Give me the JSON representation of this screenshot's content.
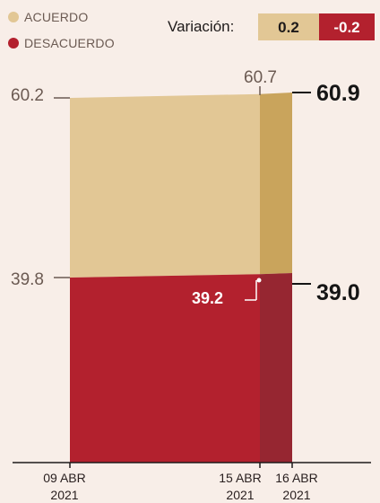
{
  "legend": {
    "agree_label": "ACUERDO",
    "disagree_label": "DESACUERDO"
  },
  "variation": {
    "label": "Variación:",
    "positive": "0.2",
    "negative": "-0.2"
  },
  "chart_data": {
    "type": "area",
    "x": [
      "09 ABR 2021",
      "15 ABR 2021",
      "16 ABR 2021"
    ],
    "x_labels": [
      {
        "line1": "09 ABR",
        "line2": "2021"
      },
      {
        "line1": "15 ABR",
        "line2": "2021"
      },
      {
        "line1": "16 ABR",
        "line2": "2021"
      }
    ],
    "series": [
      {
        "name": "ACUERDO",
        "values": [
          60.2,
          60.7,
          60.9
        ]
      },
      {
        "name": "DESACUERDO",
        "values": [
          39.8,
          39.2,
          39.0
        ]
      }
    ],
    "value_labels": {
      "agree_start": "60.2",
      "agree_mid": "60.7",
      "agree_end": "60.9",
      "disagree_start": "39.8",
      "disagree_mid": "39.2",
      "disagree_end": "39.0"
    },
    "legend_position": "top-left",
    "grid": false
  },
  "colors": {
    "background": "#f8eee8",
    "agree": "#e2c795",
    "agree_dark": "#c9a45c",
    "disagree": "#b3212e",
    "disagree_dark": "#962631",
    "axis": "#1e1a1a",
    "var_pos_bg": "#e2c795",
    "var_neg_bg": "#b3212e"
  }
}
